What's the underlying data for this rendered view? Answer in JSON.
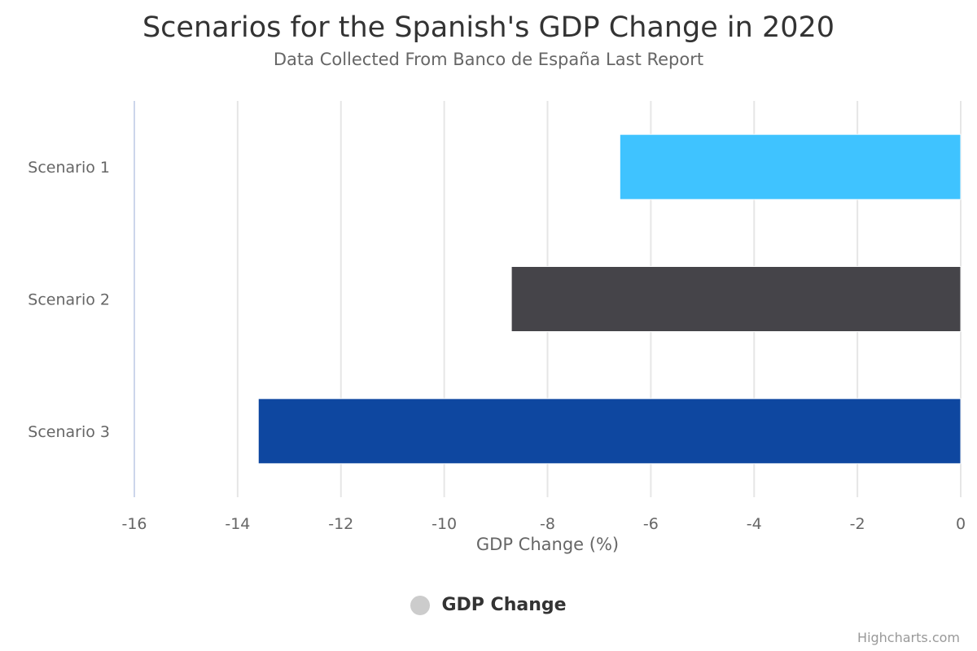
{
  "chart_data": {
    "type": "bar",
    "orientation": "horizontal",
    "title": "Scenarios for the Spanish's GDP Change in 2020",
    "subtitle": "Data Collected From Banco de España Last Report",
    "categories": [
      "Scenario 1",
      "Scenario 2",
      "Scenario 3"
    ],
    "series": [
      {
        "name": "GDP Change",
        "values": [
          -6.6,
          -8.7,
          -13.6
        ],
        "colors": [
          "#3fc3ff",
          "#454449",
          "#0e47a0"
        ]
      }
    ],
    "xlabel": "GDP Change (%)",
    "xlim": [
      -16,
      0
    ],
    "ticks": [
      -16,
      -14,
      -12,
      -10,
      -8,
      -6,
      -4,
      -2,
      0
    ],
    "grid": true,
    "legend": "bottom-center",
    "legend_color": "#cccccc"
  },
  "credits": "Highcharts.com"
}
